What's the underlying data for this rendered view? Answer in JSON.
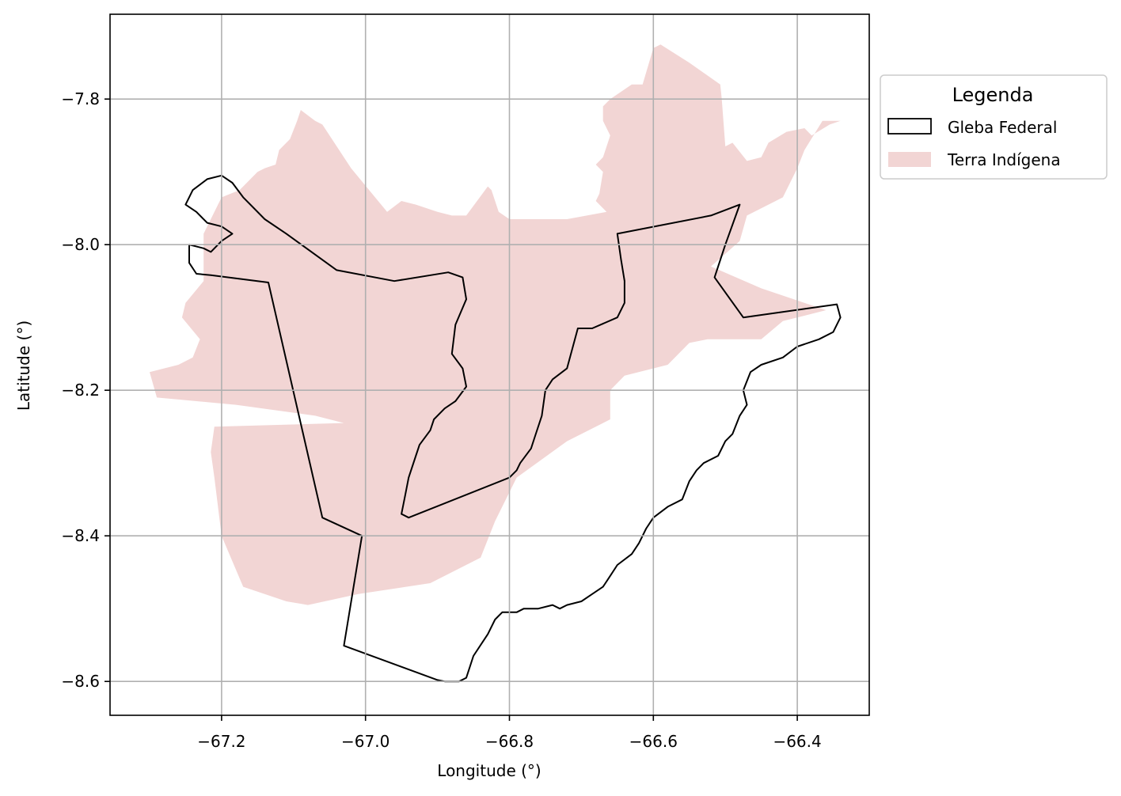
{
  "chart_data": {
    "type": "map",
    "xlabel": "Longitude (°)",
    "ylabel": "Latitude (°)",
    "xlim": [
      -67.355,
      -66.3
    ],
    "ylim": [
      -8.6465,
      -7.6835
    ],
    "grid": true,
    "x_ticks": [
      -67.2,
      -67.0,
      -66.8,
      -66.6,
      -66.4
    ],
    "x_tick_labels": [
      "−67.2",
      "−67.0",
      "−66.8",
      "−66.6",
      "−66.4"
    ],
    "y_ticks": [
      -7.8,
      -8.0,
      -8.2,
      -8.4,
      -8.6
    ],
    "y_tick_labels": [
      "−7.8",
      "−8.0",
      "−8.2",
      "−8.4",
      "−8.6"
    ],
    "legend": {
      "title": "Legenda",
      "placement": "outside-upper-right",
      "items": [
        {
          "label": "Gleba Federal",
          "style": "outline",
          "color": "#000000"
        },
        {
          "label": "Terra Indígena",
          "style": "fill",
          "color": "#f2d5d4"
        }
      ]
    },
    "layers": [
      {
        "name": "Terra Indígena",
        "style": "fill",
        "color": "#f2d5d4",
        "coords": [
          [
            -67.29,
            -8.21
          ],
          [
            -67.18,
            -8.22
          ],
          [
            -67.07,
            -8.235
          ],
          [
            -67.03,
            -8.245
          ],
          [
            -67.21,
            -8.25
          ],
          [
            -67.215,
            -8.285
          ],
          [
            -67.21,
            -8.32
          ],
          [
            -67.2,
            -8.4
          ],
          [
            -67.17,
            -8.47
          ],
          [
            -67.11,
            -8.49
          ],
          [
            -67.08,
            -8.495
          ],
          [
            -67.01,
            -8.48
          ],
          [
            -66.91,
            -8.465
          ],
          [
            -66.84,
            -8.43
          ],
          [
            -66.82,
            -8.38
          ],
          [
            -66.79,
            -8.32
          ],
          [
            -66.72,
            -8.27
          ],
          [
            -66.66,
            -8.24
          ],
          [
            -66.66,
            -8.2
          ],
          [
            -66.64,
            -8.18
          ],
          [
            -66.58,
            -8.165
          ],
          [
            -66.55,
            -8.135
          ],
          [
            -66.525,
            -8.13
          ],
          [
            -66.49,
            -8.13
          ],
          [
            -66.45,
            -8.13
          ],
          [
            -66.42,
            -8.105
          ],
          [
            -66.36,
            -8.09
          ],
          [
            -66.45,
            -8.06
          ],
          [
            -66.52,
            -8.03
          ],
          [
            -66.48,
            -7.995
          ],
          [
            -66.47,
            -7.96
          ],
          [
            -66.44,
            -7.945
          ],
          [
            -66.42,
            -7.935
          ],
          [
            -66.4,
            -7.895
          ],
          [
            -66.39,
            -7.87
          ],
          [
            -66.365,
            -7.83
          ],
          [
            -66.34,
            -7.83
          ],
          [
            -66.355,
            -7.835
          ],
          [
            -66.38,
            -7.85
          ],
          [
            -66.39,
            -7.84
          ],
          [
            -66.415,
            -7.845
          ],
          [
            -66.44,
            -7.86
          ],
          [
            -66.45,
            -7.88
          ],
          [
            -66.47,
            -7.885
          ],
          [
            -66.49,
            -7.86
          ],
          [
            -66.5,
            -7.865
          ],
          [
            -66.505,
            -7.8
          ],
          [
            -66.507,
            -7.78
          ],
          [
            -66.55,
            -7.75
          ],
          [
            -66.59,
            -7.725
          ],
          [
            -66.6,
            -7.73
          ],
          [
            -66.615,
            -7.78
          ],
          [
            -66.63,
            -7.78
          ],
          [
            -66.66,
            -7.8
          ],
          [
            -66.67,
            -7.81
          ],
          [
            -66.67,
            -7.83
          ],
          [
            -66.66,
            -7.85
          ],
          [
            -66.67,
            -7.88
          ],
          [
            -66.68,
            -7.89
          ],
          [
            -66.67,
            -7.9
          ],
          [
            -66.675,
            -7.93
          ],
          [
            -66.68,
            -7.94
          ],
          [
            -66.665,
            -7.955
          ],
          [
            -66.72,
            -7.965
          ],
          [
            -66.8,
            -7.965
          ],
          [
            -66.815,
            -7.955
          ],
          [
            -66.825,
            -7.925
          ],
          [
            -66.83,
            -7.92
          ],
          [
            -66.845,
            -7.94
          ],
          [
            -66.86,
            -7.96
          ],
          [
            -66.88,
            -7.96
          ],
          [
            -66.9,
            -7.955
          ],
          [
            -66.93,
            -7.945
          ],
          [
            -66.95,
            -7.94
          ],
          [
            -66.97,
            -7.955
          ],
          [
            -67.02,
            -7.895
          ],
          [
            -67.06,
            -7.835
          ],
          [
            -67.07,
            -7.83
          ],
          [
            -67.09,
            -7.815
          ],
          [
            -67.095,
            -7.83
          ],
          [
            -67.105,
            -7.855
          ],
          [
            -67.12,
            -7.87
          ],
          [
            -67.125,
            -7.89
          ],
          [
            -67.14,
            -7.895
          ],
          [
            -67.15,
            -7.9
          ],
          [
            -67.16,
            -7.91
          ],
          [
            -67.175,
            -7.925
          ],
          [
            -67.2,
            -7.935
          ],
          [
            -67.225,
            -7.985
          ],
          [
            -67.225,
            -8.05
          ],
          [
            -67.25,
            -8.08
          ],
          [
            -67.255,
            -8.1
          ],
          [
            -67.23,
            -8.13
          ],
          [
            -67.24,
            -8.155
          ],
          [
            -67.26,
            -8.165
          ],
          [
            -67.3,
            -8.175
          ]
        ]
      },
      {
        "name": "Gleba Federal",
        "style": "outline",
        "color": "#000000",
        "coords": [
          [
            -67.2,
            -7.905
          ],
          [
            -67.185,
            -7.915
          ],
          [
            -67.17,
            -7.935
          ],
          [
            -67.14,
            -7.965
          ],
          [
            -67.11,
            -7.985
          ],
          [
            -67.04,
            -8.035
          ],
          [
            -66.96,
            -8.05
          ],
          [
            -66.885,
            -8.038
          ],
          [
            -66.865,
            -8.045
          ],
          [
            -66.86,
            -8.075
          ],
          [
            -66.875,
            -8.11
          ],
          [
            -66.88,
            -8.15
          ],
          [
            -66.865,
            -8.17
          ],
          [
            -66.86,
            -8.195
          ],
          [
            -66.875,
            -8.215
          ],
          [
            -66.89,
            -8.225
          ],
          [
            -66.905,
            -8.24
          ],
          [
            -66.91,
            -8.255
          ],
          [
            -66.925,
            -8.275
          ],
          [
            -66.93,
            -8.29
          ],
          [
            -66.94,
            -8.32
          ],
          [
            -66.945,
            -8.345
          ],
          [
            -66.95,
            -8.37
          ],
          [
            -66.94,
            -8.375
          ],
          [
            -66.8,
            -8.32
          ],
          [
            -66.79,
            -8.31
          ],
          [
            -66.785,
            -8.3
          ],
          [
            -66.77,
            -8.28
          ],
          [
            -66.765,
            -8.265
          ],
          [
            -66.755,
            -8.235
          ],
          [
            -66.75,
            -8.2
          ],
          [
            -66.74,
            -8.185
          ],
          [
            -66.72,
            -8.17
          ],
          [
            -66.705,
            -8.115
          ],
          [
            -66.685,
            -8.115
          ],
          [
            -66.65,
            -8.1
          ],
          [
            -66.64,
            -8.08
          ],
          [
            -66.64,
            -8.05
          ],
          [
            -66.645,
            -8.02
          ],
          [
            -66.65,
            -7.985
          ],
          [
            -66.52,
            -7.96
          ],
          [
            -66.48,
            -7.945
          ],
          [
            -66.5,
            -8.0
          ],
          [
            -66.515,
            -8.045
          ],
          [
            -66.475,
            -8.1
          ],
          [
            -66.345,
            -8.082
          ],
          [
            -66.34,
            -8.1
          ],
          [
            -66.35,
            -8.12
          ],
          [
            -66.37,
            -8.13
          ],
          [
            -66.4,
            -8.14
          ],
          [
            -66.42,
            -8.155
          ],
          [
            -66.45,
            -8.165
          ],
          [
            -66.465,
            -8.175
          ],
          [
            -66.475,
            -8.2
          ],
          [
            -66.47,
            -8.22
          ],
          [
            -66.48,
            -8.235
          ],
          [
            -66.49,
            -8.26
          ],
          [
            -66.5,
            -8.27
          ],
          [
            -66.51,
            -8.29
          ],
          [
            -66.53,
            -8.3
          ],
          [
            -66.54,
            -8.31
          ],
          [
            -66.55,
            -8.325
          ],
          [
            -66.56,
            -8.35
          ],
          [
            -66.58,
            -8.36
          ],
          [
            -66.6,
            -8.375
          ],
          [
            -66.61,
            -8.39
          ],
          [
            -66.62,
            -8.41
          ],
          [
            -66.63,
            -8.425
          ],
          [
            -66.65,
            -8.44
          ],
          [
            -66.66,
            -8.455
          ],
          [
            -66.67,
            -8.47
          ],
          [
            -66.685,
            -8.48
          ],
          [
            -66.7,
            -8.49
          ],
          [
            -66.72,
            -8.495
          ],
          [
            -66.73,
            -8.5
          ],
          [
            -66.74,
            -8.495
          ],
          [
            -66.76,
            -8.5
          ],
          [
            -66.78,
            -8.5
          ],
          [
            -66.79,
            -8.505
          ],
          [
            -66.81,
            -8.505
          ],
          [
            -66.82,
            -8.515
          ],
          [
            -66.83,
            -8.535
          ],
          [
            -66.84,
            -8.55
          ],
          [
            -66.85,
            -8.565
          ],
          [
            -66.855,
            -8.58
          ],
          [
            -66.86,
            -8.595
          ],
          [
            -66.87,
            -8.6
          ],
          [
            -66.89,
            -8.6
          ],
          [
            -66.9,
            -8.598
          ],
          [
            -67.03,
            -8.551
          ],
          [
            -67.005,
            -8.4
          ],
          [
            -67.06,
            -8.375
          ],
          [
            -67.135,
            -8.052
          ],
          [
            -67.215,
            -8.042
          ],
          [
            -67.235,
            -8.04
          ],
          [
            -67.245,
            -8.025
          ],
          [
            -67.245,
            -8.0
          ],
          [
            -67.225,
            -8.005
          ],
          [
            -67.215,
            -8.01
          ],
          [
            -67.2,
            -7.995
          ],
          [
            -67.185,
            -7.985
          ],
          [
            -67.2,
            -7.975
          ],
          [
            -67.22,
            -7.97
          ],
          [
            -67.235,
            -7.955
          ],
          [
            -67.25,
            -7.945
          ],
          [
            -67.24,
            -7.925
          ],
          [
            -67.22,
            -7.91
          ]
        ]
      }
    ]
  }
}
